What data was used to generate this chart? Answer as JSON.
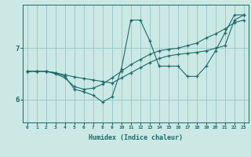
{
  "xlabel": "Humidex (Indice chaleur)",
  "bg_color": "#cce8e4",
  "line_color": "#1a6b6b",
  "grid_color": "#99cccc",
  "yticks": [
    6,
    7
  ],
  "ylim": [
    5.55,
    7.85
  ],
  "xlim": [
    -0.5,
    23.5
  ],
  "xticks": [
    0,
    1,
    2,
    3,
    4,
    5,
    6,
    7,
    8,
    9,
    10,
    11,
    12,
    13,
    14,
    15,
    16,
    17,
    18,
    19,
    20,
    21,
    22,
    23
  ],
  "series": [
    {
      "x": [
        0,
        1,
        2,
        3,
        4,
        5,
        6,
        7,
        8,
        9,
        10,
        11,
        12,
        13,
        14,
        15,
        16,
        17,
        18,
        19,
        20,
        21,
        22,
        23
      ],
      "y": [
        6.55,
        6.55,
        6.55,
        6.52,
        6.45,
        6.2,
        6.15,
        6.08,
        5.95,
        6.05,
        6.6,
        7.55,
        7.55,
        7.15,
        6.65,
        6.65,
        6.65,
        6.45,
        6.45,
        6.65,
        6.95,
        7.3,
        7.65,
        7.65
      ]
    },
    {
      "x": [
        0,
        1,
        2,
        3,
        4,
        5,
        6,
        7,
        8,
        9,
        10,
        11,
        12,
        13,
        14,
        15,
        16,
        17,
        18,
        19,
        20,
        21,
        22,
        23
      ],
      "y": [
        6.55,
        6.55,
        6.55,
        6.5,
        6.42,
        6.25,
        6.2,
        6.22,
        6.3,
        6.42,
        6.55,
        6.68,
        6.78,
        6.88,
        6.95,
        6.98,
        7.0,
        7.05,
        7.1,
        7.2,
        7.28,
        7.38,
        7.5,
        7.55
      ]
    },
    {
      "x": [
        0,
        1,
        2,
        3,
        4,
        5,
        6,
        7,
        8,
        9,
        10,
        11,
        12,
        13,
        14,
        15,
        16,
        17,
        18,
        19,
        20,
        21,
        22,
        23
      ],
      "y": [
        6.55,
        6.55,
        6.55,
        6.52,
        6.48,
        6.44,
        6.41,
        6.38,
        6.35,
        6.32,
        6.42,
        6.52,
        6.62,
        6.72,
        6.8,
        6.85,
        6.88,
        6.9,
        6.92,
        6.95,
        7.0,
        7.05,
        7.55,
        7.65
      ]
    }
  ]
}
